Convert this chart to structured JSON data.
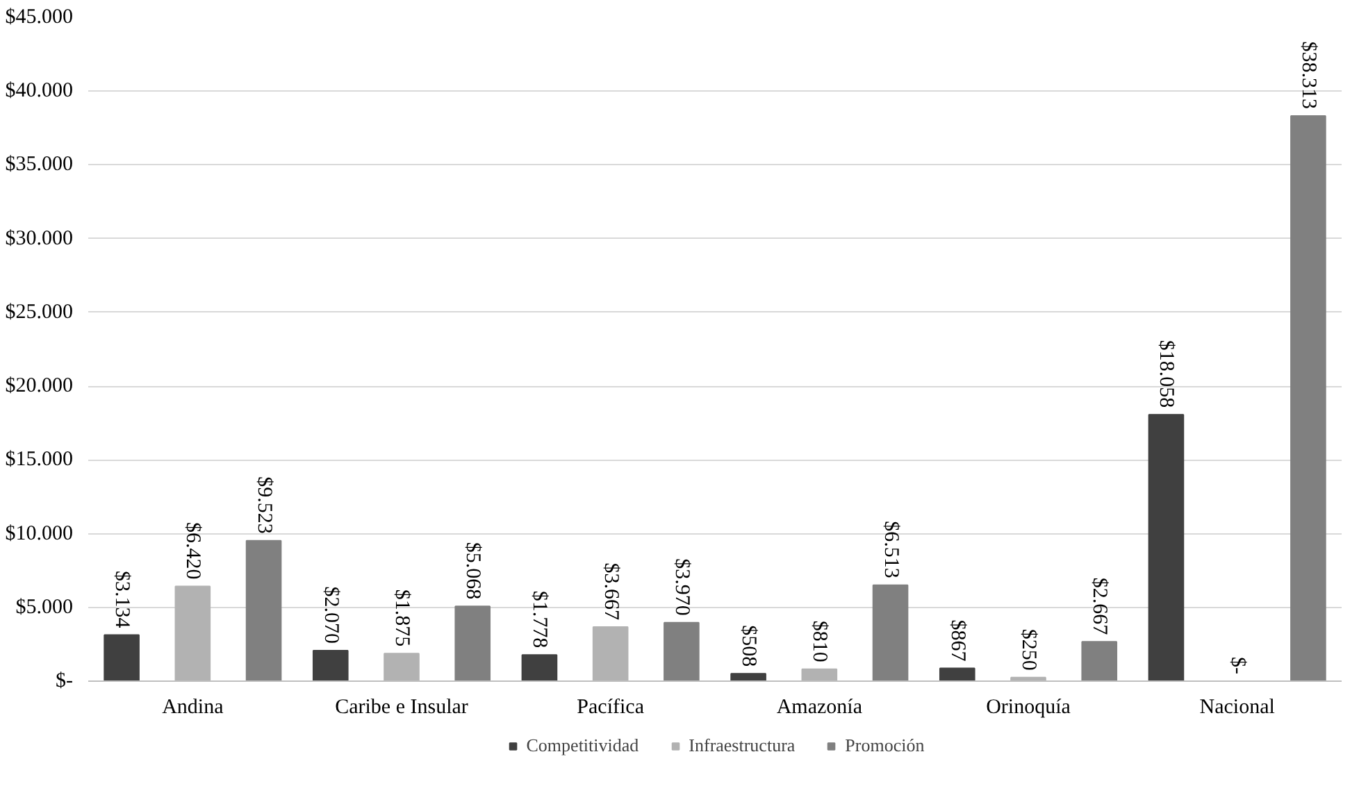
{
  "chart_data": {
    "type": "bar",
    "categories": [
      "Andina",
      "Caribe e Insular",
      "Pacífica",
      "Amazonía",
      "Orinoquía",
      "Nacional"
    ],
    "series": [
      {
        "name": "Competitividad",
        "color": "#404040",
        "values": [
          3134,
          2070,
          1778,
          508,
          867,
          18058
        ],
        "value_labels": [
          "$3.134",
          "$2.070",
          "$1.778",
          "$508",
          "$867",
          "$18.058"
        ]
      },
      {
        "name": "Infraestructura",
        "color": "#b2b2b2",
        "values": [
          6420,
          1875,
          3667,
          810,
          250,
          0
        ],
        "value_labels": [
          "$6.420",
          "$1.875",
          "$3.667",
          "$810",
          "$250",
          "$-"
        ]
      },
      {
        "name": "Promoción",
        "color": "#808080",
        "values": [
          9523,
          5068,
          3970,
          6513,
          2667,
          38313
        ],
        "value_labels": [
          "$9.523",
          "$5.068",
          "$3.970",
          "$6.513",
          "$2.667",
          "$38.313"
        ]
      }
    ],
    "ylim": [
      0,
      45000
    ],
    "yticks": [
      {
        "value": 0,
        "label": "$-"
      },
      {
        "value": 5000,
        "label": "$5.000"
      },
      {
        "value": 10000,
        "label": "$10.000"
      },
      {
        "value": 15000,
        "label": "$15.000"
      },
      {
        "value": 20000,
        "label": "$20.000"
      },
      {
        "value": 25000,
        "label": "$25.000"
      },
      {
        "value": 30000,
        "label": "$30.000"
      },
      {
        "value": 35000,
        "label": "$35.000"
      },
      {
        "value": 40000,
        "label": "$40.000"
      },
      {
        "value": 45000,
        "label": "$45.000"
      }
    ],
    "grid": "y",
    "legend": "bottom"
  }
}
